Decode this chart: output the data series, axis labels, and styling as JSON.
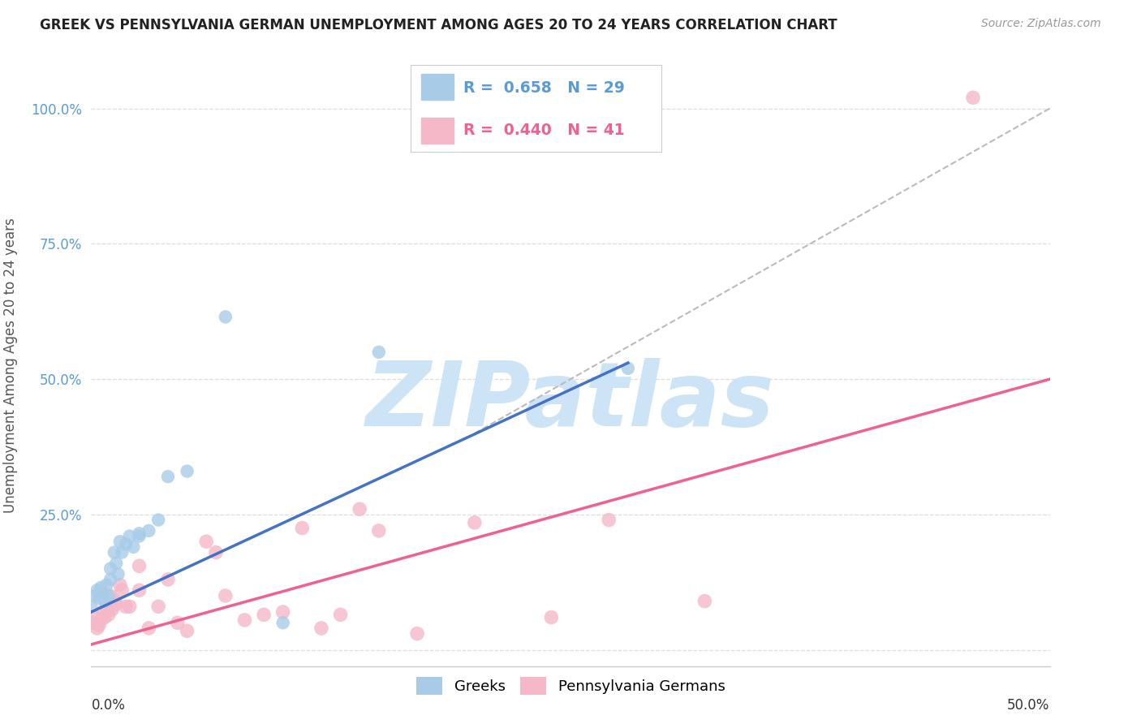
{
  "title": "GREEK VS PENNSYLVANIA GERMAN UNEMPLOYMENT AMONG AGES 20 TO 24 YEARS CORRELATION CHART",
  "source": "Source: ZipAtlas.com",
  "ylabel": "Unemployment Among Ages 20 to 24 years",
  "xmin": 0.0,
  "xmax": 0.5,
  "ymin": -0.03,
  "ymax": 1.08,
  "yticks": [
    0.0,
    0.25,
    0.5,
    0.75,
    1.0
  ],
  "ytick_labels": [
    "",
    "25.0%",
    "50.0%",
    "75.0%",
    "100.0%"
  ],
  "greek_color": "#a8cce8",
  "pa_german_color": "#f4b8c8",
  "greek_line_color": "#4472c4",
  "pa_german_line_color": "#f06090",
  "dashed_line_color": "#bbbbbb",
  "legend_greek_r": "0.658",
  "legend_greek_n": "29",
  "legend_pa_r": "0.440",
  "legend_pa_n": "41",
  "background_color": "#ffffff",
  "watermark_text": "ZIPatlas",
  "watermark_color": "#cce4f5",
  "title_color": "#222222",
  "tick_label_color": "#5b9bd5",
  "greek_points_x": [
    0.0,
    0.002,
    0.003,
    0.004,
    0.005,
    0.006,
    0.007,
    0.008,
    0.009,
    0.01,
    0.01,
    0.012,
    0.013,
    0.014,
    0.015,
    0.016,
    0.018,
    0.02,
    0.022,
    0.025,
    0.025,
    0.03,
    0.035,
    0.04,
    0.05,
    0.07,
    0.1,
    0.15,
    0.28
  ],
  "greek_points_y": [
    0.08,
    0.1,
    0.11,
    0.095,
    0.115,
    0.105,
    0.09,
    0.12,
    0.1,
    0.15,
    0.13,
    0.18,
    0.16,
    0.14,
    0.2,
    0.18,
    0.195,
    0.21,
    0.19,
    0.21,
    0.215,
    0.22,
    0.24,
    0.32,
    0.33,
    0.615,
    0.05,
    0.55,
    0.52
  ],
  "pa_points_x": [
    0.0,
    0.002,
    0.003,
    0.004,
    0.005,
    0.006,
    0.007,
    0.008,
    0.009,
    0.01,
    0.011,
    0.012,
    0.013,
    0.015,
    0.016,
    0.018,
    0.02,
    0.025,
    0.025,
    0.03,
    0.035,
    0.04,
    0.045,
    0.05,
    0.06,
    0.065,
    0.07,
    0.08,
    0.09,
    0.1,
    0.11,
    0.12,
    0.13,
    0.14,
    0.15,
    0.17,
    0.2,
    0.24,
    0.27,
    0.32,
    0.46
  ],
  "pa_points_y": [
    0.05,
    0.06,
    0.04,
    0.045,
    0.055,
    0.07,
    0.06,
    0.08,
    0.065,
    0.1,
    0.075,
    0.09,
    0.085,
    0.12,
    0.11,
    0.08,
    0.08,
    0.11,
    0.155,
    0.04,
    0.08,
    0.13,
    0.05,
    0.035,
    0.2,
    0.18,
    0.1,
    0.055,
    0.065,
    0.07,
    0.225,
    0.04,
    0.065,
    0.26,
    0.22,
    0.03,
    0.235,
    0.06,
    0.24,
    0.09,
    1.02
  ],
  "greek_line_x": [
    0.0,
    0.28
  ],
  "greek_line_y": [
    0.07,
    0.53
  ],
  "pa_line_x": [
    0.0,
    0.5
  ],
  "pa_line_y": [
    0.01,
    0.5
  ],
  "dash_line_x": [
    0.2,
    0.5
  ],
  "dash_line_y": [
    0.4,
    1.0
  ]
}
